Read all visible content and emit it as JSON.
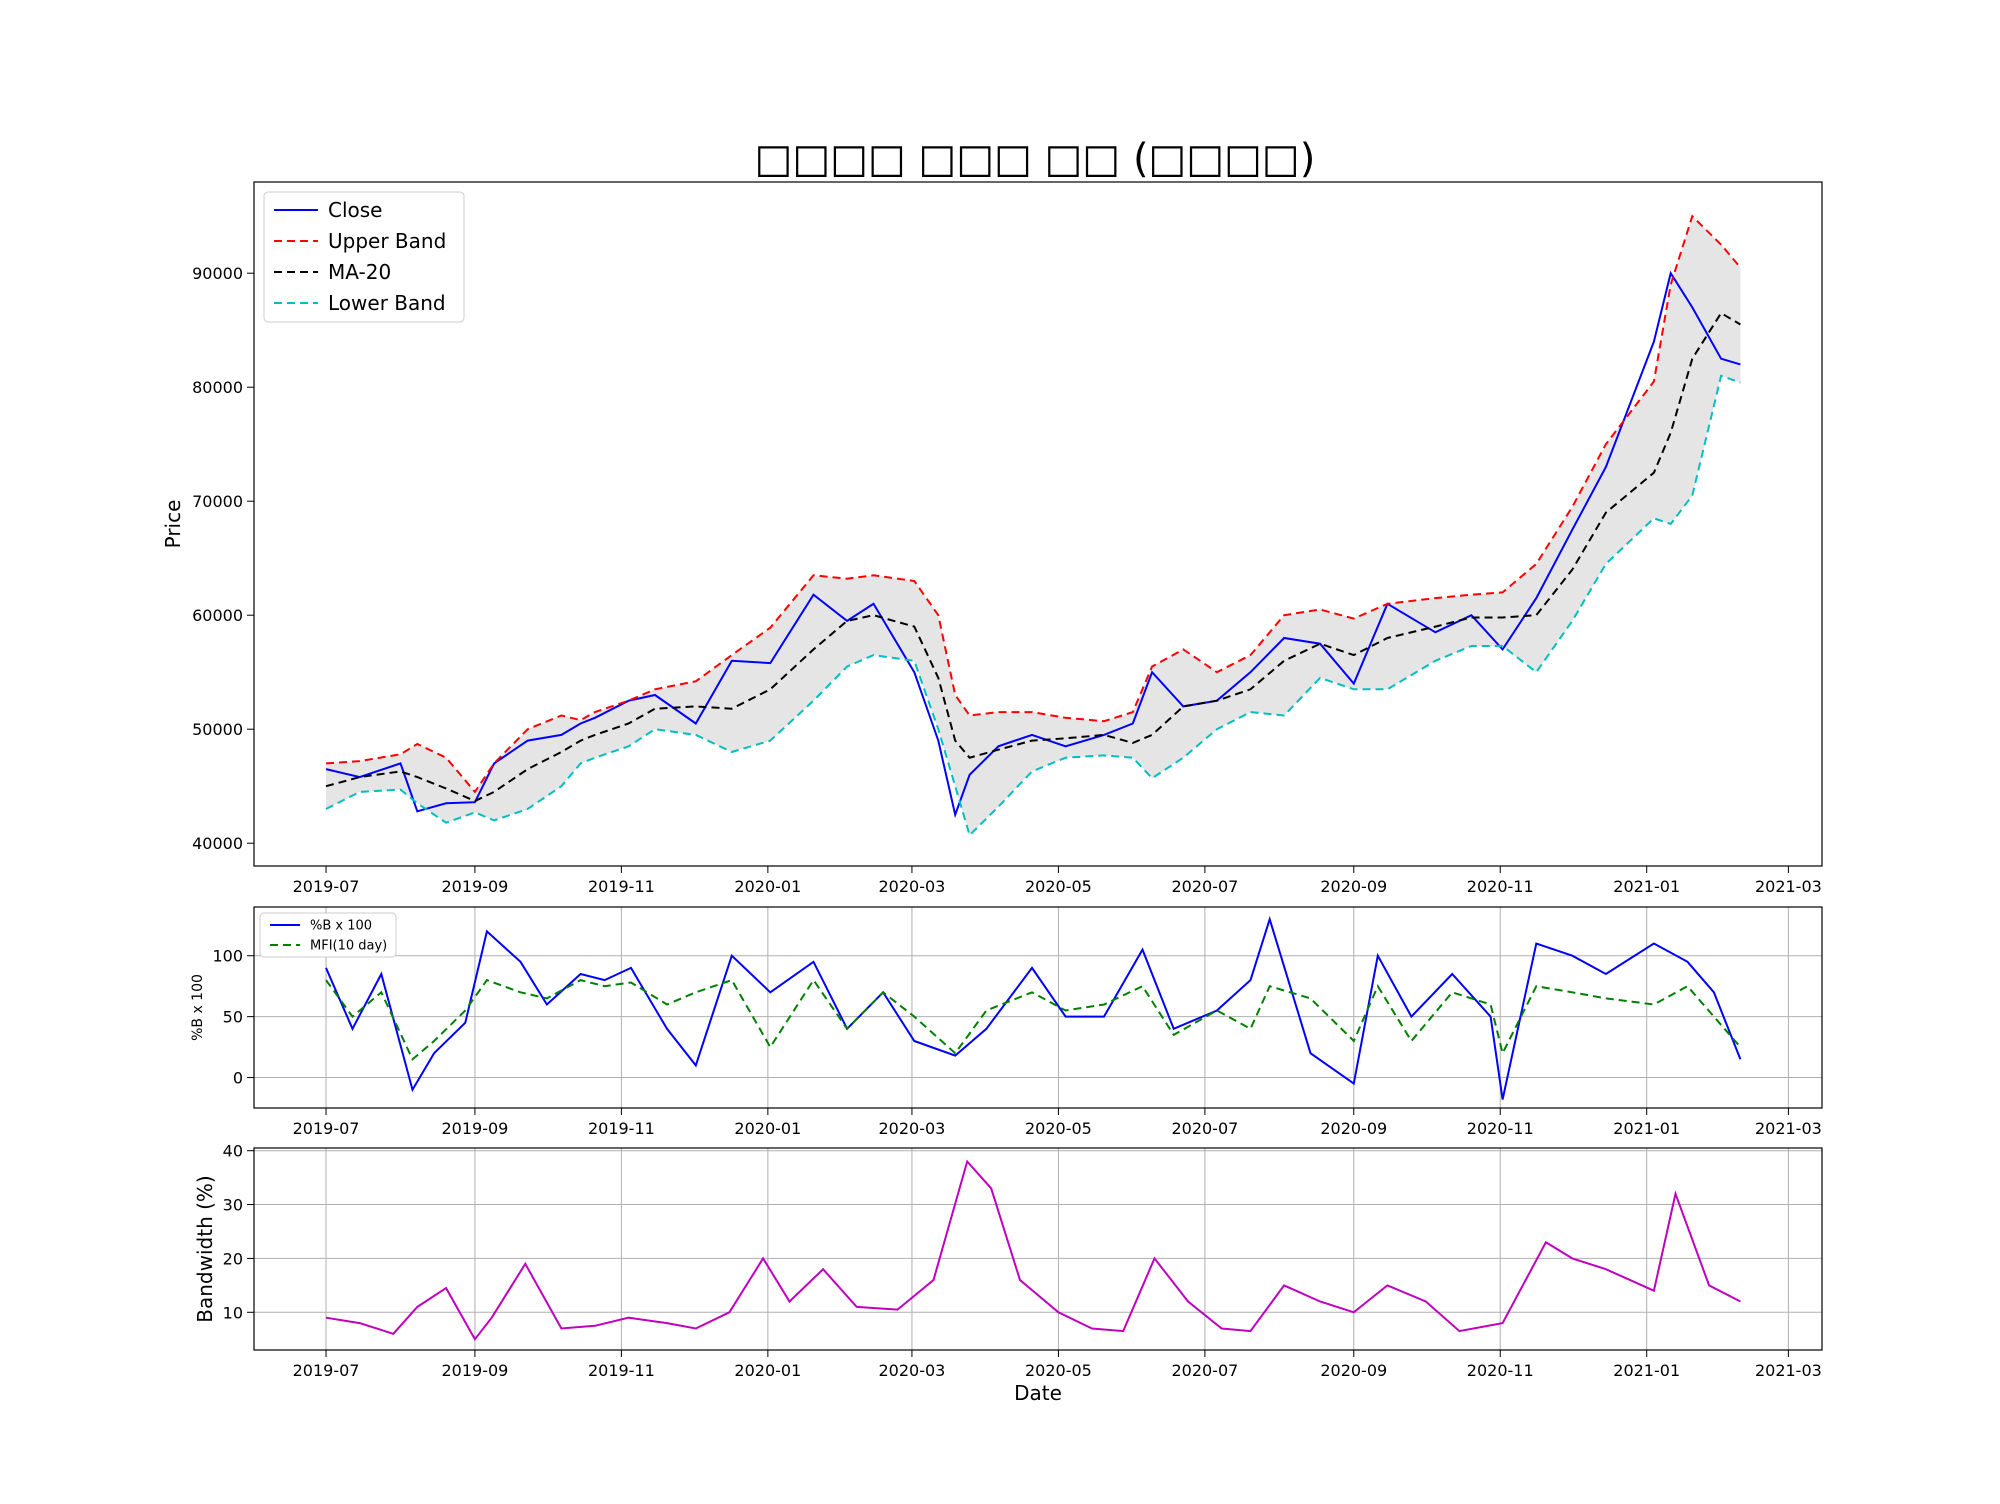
{
  "chart_data": [
    {
      "type": "line",
      "title": "□□□□ □□□ □□ (□□□□)",
      "xlabel": "",
      "ylabel": "Price",
      "x_tick_labels": [
        "2019-07",
        "2019-09",
        "2019-11",
        "2020-01",
        "2020-03",
        "2020-05",
        "2020-07",
        "2020-09",
        "2020-11",
        "2021-01",
        "2021-03"
      ],
      "y_ticks": [
        40000,
        50000,
        60000,
        70000,
        80000,
        90000
      ],
      "ylim": [
        38000,
        98000
      ],
      "grid": false,
      "legend": "top-left",
      "x": [
        "2019-07-01",
        "2019-07-15",
        "2019-08-01",
        "2019-08-08",
        "2019-08-20",
        "2019-09-01",
        "2019-09-09",
        "2019-09-23",
        "2019-10-07",
        "2019-10-15",
        "2019-10-21",
        "2019-11-04",
        "2019-11-15",
        "2019-12-02",
        "2019-12-17",
        "2020-01-02",
        "2020-01-20",
        "2020-02-03",
        "2020-02-14",
        "2020-03-02",
        "2020-03-12",
        "2020-03-19",
        "2020-03-25",
        "2020-04-06",
        "2020-04-20",
        "2020-05-04",
        "2020-05-20",
        "2020-06-01",
        "2020-06-09",
        "2020-06-22",
        "2020-07-06",
        "2020-07-20",
        "2020-08-03",
        "2020-08-18",
        "2020-09-01",
        "2020-09-15",
        "2020-10-05",
        "2020-10-20",
        "2020-11-02",
        "2020-11-16",
        "2020-12-01",
        "2020-12-15",
        "2021-01-04",
        "2021-01-11",
        "2021-01-20",
        "2021-02-01",
        "2021-02-09"
      ],
      "series": [
        {
          "name": "Close",
          "color": "#0000ff",
          "dash": "solid",
          "values": [
            46500,
            45800,
            47000,
            42800,
            43500,
            43600,
            47000,
            49000,
            49500,
            50500,
            51000,
            52500,
            53000,
            50500,
            56000,
            55800,
            61800,
            59500,
            61000,
            55000,
            49000,
            42500,
            46000,
            48500,
            49500,
            48500,
            49500,
            50500,
            55000,
            52000,
            52500,
            55000,
            58000,
            57500,
            54000,
            61000,
            58500,
            60000,
            57000,
            61500,
            67500,
            73000,
            84000,
            90000,
            87000,
            82500,
            82000
          ]
        },
        {
          "name": "Upper Band",
          "color": "#ff0000",
          "dash": "dashed",
          "values": [
            47000,
            47200,
            47800,
            48700,
            47500,
            44500,
            47000,
            50000,
            51200,
            50800,
            51500,
            52500,
            53500,
            54200,
            56500,
            58900,
            63500,
            63200,
            63500,
            63000,
            60000,
            53000,
            51200,
            51500,
            51500,
            51000,
            50700,
            51500,
            55500,
            57000,
            55000,
            56500,
            60000,
            60500,
            59700,
            61000,
            61500,
            61800,
            62000,
            64500,
            69500,
            75000,
            80500,
            89000,
            95000,
            92500,
            90500
          ]
        },
        {
          "name": "MA-20",
          "color": "#000000",
          "dash": "dashed",
          "values": [
            45000,
            45800,
            46300,
            45800,
            44800,
            43700,
            44500,
            46500,
            48000,
            49000,
            49500,
            50500,
            51800,
            52000,
            51800,
            53500,
            57000,
            59500,
            60000,
            59000,
            54500,
            49000,
            47500,
            48200,
            49000,
            49200,
            49500,
            48800,
            49500,
            52000,
            52500,
            53500,
            56000,
            57500,
            56500,
            58000,
            59000,
            59800,
            59800,
            60000,
            64000,
            69000,
            72500,
            76000,
            82500,
            86500,
            85500
          ]
        },
        {
          "name": "Lower Band",
          "color": "#00bfbf",
          "dash": "dashed",
          "values": [
            43000,
            44500,
            44700,
            43500,
            41800,
            42700,
            42000,
            43000,
            45000,
            47000,
            47500,
            48500,
            50000,
            49500,
            48000,
            49000,
            52500,
            55500,
            56500,
            56000,
            50000,
            45000,
            40700,
            43200,
            46300,
            47500,
            47700,
            47500,
            45700,
            47500,
            50000,
            51500,
            51200,
            54500,
            53500,
            53500,
            56000,
            57300,
            57300,
            55000,
            59500,
            64500,
            68500,
            68000,
            70500,
            81000,
            80400
          ]
        }
      ]
    },
    {
      "type": "line",
      "title": "",
      "xlabel": "",
      "ylabel": "%B x 100",
      "x_tick_labels": [
        "2019-07",
        "2019-09",
        "2019-11",
        "2020-01",
        "2020-03",
        "2020-05",
        "2020-07",
        "2020-09",
        "2020-11",
        "2021-01",
        "2021-03"
      ],
      "y_ticks": [
        0,
        50,
        100
      ],
      "ylim": [
        -25,
        140
      ],
      "grid": true,
      "legend": "top-left",
      "x": [
        "2019-07-01",
        "2019-07-12",
        "2019-07-24",
        "2019-08-06",
        "2019-08-15",
        "2019-08-28",
        "2019-09-06",
        "2019-09-20",
        "2019-10-01",
        "2019-10-15",
        "2019-10-25",
        "2019-11-05",
        "2019-11-20",
        "2019-12-02",
        "2019-12-17",
        "2020-01-02",
        "2020-01-20",
        "2020-02-03",
        "2020-02-18",
        "2020-03-02",
        "2020-03-19",
        "2020-04-01",
        "2020-04-20",
        "2020-05-04",
        "2020-05-20",
        "2020-06-05",
        "2020-06-18",
        "2020-07-06",
        "2020-07-20",
        "2020-07-28",
        "2020-08-14",
        "2020-09-01",
        "2020-09-11",
        "2020-09-25",
        "2020-10-12",
        "2020-10-28",
        "2020-11-02",
        "2020-11-16",
        "2020-12-01",
        "2020-12-15",
        "2021-01-04",
        "2021-01-18",
        "2021-01-29",
        "2021-02-09"
      ],
      "series": [
        {
          "name": "%B x 100",
          "color": "#0000ff",
          "dash": "solid",
          "values": [
            90,
            40,
            85,
            -10,
            20,
            45,
            120,
            95,
            60,
            85,
            80,
            90,
            40,
            10,
            100,
            70,
            95,
            40,
            70,
            30,
            18,
            40,
            90,
            50,
            50,
            105,
            40,
            55,
            80,
            130,
            20,
            -5,
            100,
            50,
            85,
            50,
            -18,
            110,
            100,
            85,
            110,
            95,
            70,
            15
          ]
        },
        {
          "name": "MFI(10 day)",
          "color": "#008000",
          "dash": "dashed",
          "values": [
            80,
            50,
            70,
            15,
            30,
            55,
            80,
            70,
            65,
            80,
            75,
            78,
            60,
            70,
            80,
            25,
            80,
            40,
            70,
            50,
            20,
            55,
            70,
            55,
            60,
            75,
            35,
            55,
            40,
            75,
            65,
            30,
            75,
            30,
            70,
            60,
            20,
            75,
            70,
            65,
            60,
            75,
            50,
            25
          ]
        }
      ]
    },
    {
      "type": "line",
      "title": "",
      "xlabel": "Date",
      "ylabel": "Bandwidth (%)",
      "x_tick_labels": [
        "2019-07",
        "2019-09",
        "2019-11",
        "2020-01",
        "2020-03",
        "2020-05",
        "2020-07",
        "2020-09",
        "2020-11",
        "2021-01",
        "2021-03"
      ],
      "y_ticks": [
        10,
        20,
        30,
        40
      ],
      "ylim": [
        3,
        40.5
      ],
      "grid": true,
      "legend": "none",
      "x": [
        "2019-07-01",
        "2019-07-15",
        "2019-07-29",
        "2019-08-08",
        "2019-08-20",
        "2019-09-01",
        "2019-09-08",
        "2019-09-22",
        "2019-10-07",
        "2019-10-21",
        "2019-11-04",
        "2019-11-20",
        "2019-12-02",
        "2019-12-16",
        "2019-12-30",
        "2020-01-10",
        "2020-01-24",
        "2020-02-07",
        "2020-02-24",
        "2020-03-10",
        "2020-03-24",
        "2020-04-03",
        "2020-04-15",
        "2020-05-01",
        "2020-05-15",
        "2020-05-28",
        "2020-06-10",
        "2020-06-24",
        "2020-07-08",
        "2020-07-20",
        "2020-08-03",
        "2020-08-18",
        "2020-09-01",
        "2020-09-15",
        "2020-10-01",
        "2020-10-15",
        "2020-11-02",
        "2020-11-20",
        "2020-12-01",
        "2020-12-15",
        "2021-01-04",
        "2021-01-13",
        "2021-01-27",
        "2021-02-09"
      ],
      "series": [
        {
          "name": "Bandwidth",
          "color": "#bf00bf",
          "dash": "solid",
          "values": [
            9,
            8,
            6,
            11,
            14.5,
            5,
            9,
            19,
            7,
            7.5,
            9,
            8,
            7,
            10,
            20,
            12,
            18,
            11,
            10.5,
            16,
            38,
            33,
            16,
            10,
            7,
            6.5,
            20,
            12,
            7,
            6.5,
            15,
            12,
            10,
            15,
            12,
            6.5,
            8,
            23,
            20,
            18,
            14,
            32,
            15,
            12
          ]
        }
      ]
    }
  ],
  "legends": {
    "price": [
      "Close",
      "Upper Band",
      "MA-20",
      "Lower Band"
    ],
    "pctb": [
      "%B x 100",
      "MFI(10 day)"
    ]
  }
}
